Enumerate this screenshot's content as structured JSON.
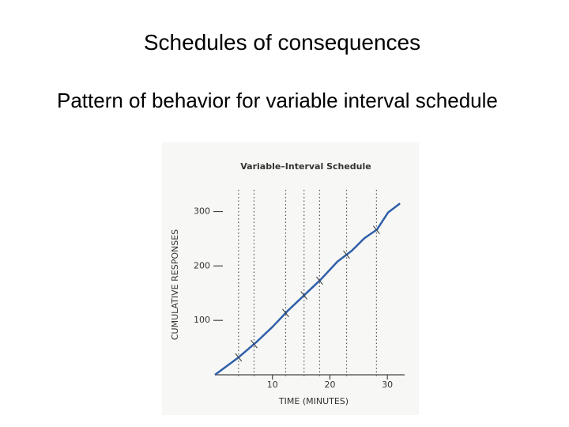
{
  "header": {
    "title": "Schedules of consequences",
    "subtitle": "Pattern of behavior for variable interval schedule"
  },
  "chart_data": {
    "type": "line",
    "title": "Variable–Interval Schedule",
    "x_label": "TIME (MINUTES)",
    "y_label": "CUMULATIVE RESPONSES",
    "x": [
      0,
      4.1,
      7.3,
      10,
      12.7,
      16.2,
      18.4,
      21.3,
      23.8,
      26,
      28.2,
      30.1,
      32.2
    ],
    "series": [
      {
        "color": "#2f5fa8",
        "values": [
          0,
          32,
          61,
          88,
          118,
          153,
          175,
          208,
          228,
          251,
          267,
          298,
          315
        ]
      }
    ],
    "reinforcement_times": [
      4.1,
      6.8,
      12.3,
      15.5,
      18.2,
      22.9,
      28.1
    ],
    "xlim": [
      0,
      33
    ],
    "ylim": [
      0,
      340
    ],
    "xticks": [
      10,
      20,
      30
    ],
    "yticks": [
      100,
      200,
      300
    ]
  }
}
